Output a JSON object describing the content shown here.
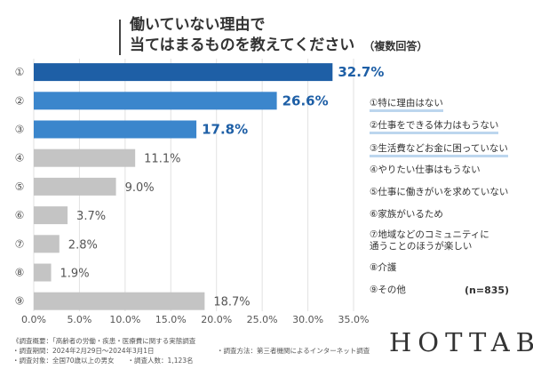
{
  "chart_data": {
    "type": "bar",
    "orientation": "horizontal",
    "title": "働いていない理由で\n当てはまるものを教えてください",
    "title_note": "（複数回答）",
    "categories": [
      "①",
      "②",
      "③",
      "④",
      "⑤",
      "⑥",
      "⑦",
      "⑧",
      "⑨"
    ],
    "values": [
      32.7,
      26.6,
      17.8,
      11.1,
      9.0,
      3.7,
      2.8,
      1.9,
      18.7
    ],
    "data_labels": [
      "32.7%",
      "26.6%",
      "17.8%",
      "11.1%",
      "9.0%",
      "3.7%",
      "2.8%",
      "1.9%",
      "18.7%"
    ],
    "bar_colors": [
      "#1e5fa6",
      "#3b86cc",
      "#3b86cc",
      "#c4c4c4",
      "#c4c4c4",
      "#c4c4c4",
      "#c4c4c4",
      "#c4c4c4",
      "#c4c4c4"
    ],
    "label_colors": [
      "#1e5fa6",
      "#1e5fa6",
      "#1e5fa6",
      "#555555",
      "#555555",
      "#555555",
      "#555555",
      "#555555",
      "#555555"
    ],
    "xlim": [
      0,
      35
    ],
    "x_ticks": [
      "0.0%",
      "5.0%",
      "10.0%",
      "15.0%",
      "20.0%",
      "25.0%",
      "30.0%",
      "35.0%"
    ],
    "grid": "vertical",
    "legend": [
      "①特に理由はない",
      "②仕事をできる体力はもうない",
      "③生活費などお金に困っていない",
      "④やりたい仕事はもうない",
      "⑤仕事に働きがいを求めていない",
      "⑥家族がいるため",
      "⑦地域などのコミュニティに\n通うことのほうが楽しい",
      "⑧介護",
      "⑨その他"
    ],
    "legend_highlighted": [
      true,
      true,
      true,
      false,
      false,
      false,
      false,
      false,
      false
    ],
    "sample_size": "(n=835)"
  },
  "footer": {
    "line1": "《調査概要：「高齢者の労働・疾患・医療費に関する実態調査",
    "line2": "・調査期間：2024年2月29日〜2024年3月1日",
    "line3": "・調査対象：全国70歳以上の男女　　・調査人数：1,123名",
    "method": "・調査方法：第三者機関によるインターネット調査"
  },
  "logo": "HOTTAB"
}
